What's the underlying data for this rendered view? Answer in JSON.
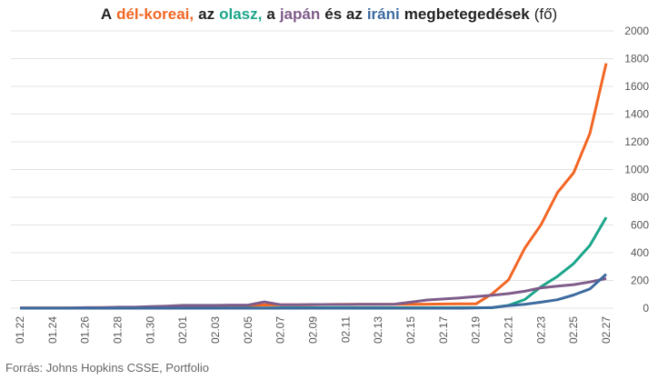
{
  "chart_data": {
    "type": "line",
    "title": [
      {
        "text": "A",
        "color": "#222222",
        "bold": true
      },
      {
        "text": "dél-koreai,",
        "color": "#f26522",
        "bold": true
      },
      {
        "text": "az",
        "color": "#222222",
        "bold": true
      },
      {
        "text": "olasz,",
        "color": "#1aa58a",
        "bold": true
      },
      {
        "text": "a",
        "color": "#222222",
        "bold": true
      },
      {
        "text": "japán",
        "color": "#7e5c8a",
        "bold": true
      },
      {
        "text": "és az",
        "color": "#222222",
        "bold": true
      },
      {
        "text": "iráni",
        "color": "#3d6a9e",
        "bold": true
      },
      {
        "text": "megbetegedések",
        "color": "#222222",
        "bold": true
      },
      {
        "text": "(fő)",
        "color": "#222222",
        "bold": false
      }
    ],
    "source": "Forrás: Johns Hopkins CSSE, Portfolio",
    "categories": [
      "01.22",
      null,
      "01.24",
      null,
      "01.26",
      null,
      "01.28",
      null,
      "01.30",
      null,
      "02.01",
      null,
      "02.03",
      null,
      "02.05",
      null,
      "02.07",
      null,
      "02.09",
      null,
      "02.11",
      null,
      "02.13",
      null,
      "02.15",
      null,
      "02.17",
      null,
      "02.19",
      null,
      "02.21",
      null,
      "02.23",
      null,
      "02.25",
      null,
      "02.27"
    ],
    "series": [
      {
        "name": "dél-koreai",
        "color": "#f26522",
        "values": [
          1,
          1,
          2,
          2,
          3,
          4,
          4,
          4,
          4,
          11,
          12,
          15,
          15,
          16,
          19,
          23,
          24,
          24,
          25,
          27,
          28,
          28,
          28,
          28,
          28,
          29,
          30,
          31,
          31,
          104,
          204,
          433,
          602,
          833,
          977,
          1261,
          1766
        ]
      },
      {
        "name": "olasz",
        "color": "#1aa58a",
        "values": [
          0,
          0,
          0,
          0,
          0,
          0,
          0,
          0,
          0,
          2,
          2,
          2,
          2,
          2,
          2,
          2,
          3,
          3,
          3,
          3,
          3,
          3,
          3,
          3,
          3,
          3,
          3,
          3,
          3,
          3,
          20,
          62,
          155,
          229,
          322,
          453,
          655
        ]
      },
      {
        "name": "japán",
        "color": "#7e5c8a",
        "values": [
          2,
          1,
          2,
          2,
          4,
          4,
          7,
          7,
          11,
          15,
          20,
          20,
          20,
          22,
          22,
          45,
          25,
          25,
          26,
          26,
          26,
          28,
          28,
          29,
          43,
          59,
          66,
          74,
          84,
          94,
          105,
          122,
          147,
          159,
          170,
          189,
          214
        ]
      },
      {
        "name": "iráni",
        "color": "#3d6a9e",
        "values": [
          0,
          0,
          0,
          0,
          0,
          0,
          0,
          0,
          0,
          0,
          0,
          0,
          0,
          0,
          0,
          0,
          0,
          0,
          0,
          0,
          0,
          0,
          0,
          0,
          0,
          0,
          0,
          0,
          2,
          5,
          18,
          28,
          43,
          61,
          95,
          139,
          245
        ]
      }
    ],
    "ylim": [
      0,
      2000
    ],
    "yticks": [
      0,
      200,
      400,
      600,
      800,
      1000,
      1200,
      1400,
      1600,
      1800,
      2000
    ],
    "grid": true
  }
}
